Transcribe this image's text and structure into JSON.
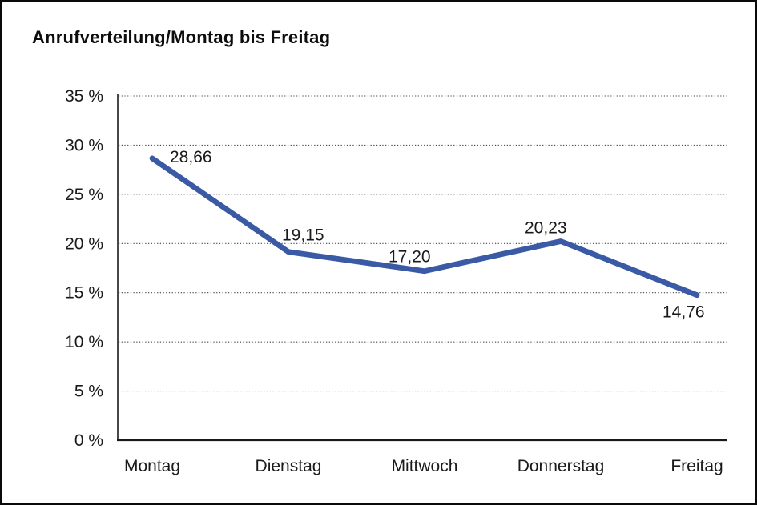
{
  "title": "Anrufverteilung/Montag bis Freitag",
  "chart_data": {
    "type": "line",
    "title": "Anrufverteilung/Montag bis Freitag",
    "categories": [
      "Montag",
      "Dienstag",
      "Mittwoch",
      "Donnerstag",
      "Freitag"
    ],
    "values": [
      28.66,
      19.15,
      17.2,
      20.23,
      14.76
    ],
    "value_labels": [
      "28,66",
      "19,15",
      "17,20",
      "20,23",
      "14,76"
    ],
    "xlabel": "",
    "ylabel": "",
    "ylim": [
      0,
      35
    ],
    "ytick_step": 5,
    "ytick_labels": [
      "0 %",
      "5 %",
      "10 %",
      "15 %",
      "20 %",
      "25 %",
      "30 %",
      "35 %"
    ],
    "grid": "horizontal-dotted",
    "legend_position": "none",
    "series_name": "Anrufverteilung"
  },
  "colors": {
    "line": "#3A5AA5",
    "text": "#1a1a1a",
    "grid": "#4a4a4a",
    "axis": "#1a1a1a",
    "background": "#ffffff",
    "border": "#0a0a0a"
  }
}
